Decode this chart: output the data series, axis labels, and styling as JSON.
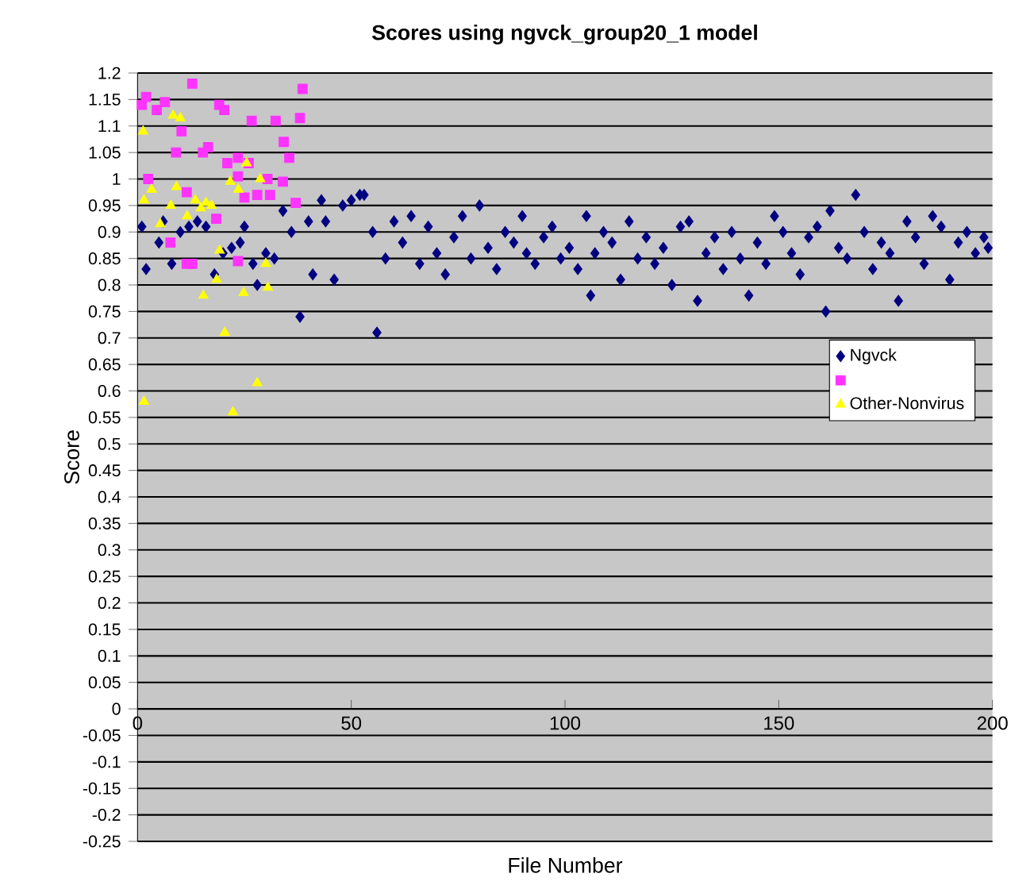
{
  "chart_data": {
    "type": "scatter",
    "title": "Scores using ngvck_group20_1 model",
    "xlabel": "File Number",
    "ylabel": "Score",
    "xlim": [
      0,
      200
    ],
    "xticks": [
      0,
      50,
      100,
      150,
      200
    ],
    "ylim": [
      -0.25,
      1.2
    ],
    "yticks": [
      -0.25,
      -0.2,
      -0.15,
      -0.1,
      -0.05,
      0,
      0.05,
      0.1,
      0.15,
      0.2,
      0.25,
      0.3,
      0.35,
      0.4,
      0.45,
      0.5,
      0.55,
      0.6,
      0.65,
      0.7,
      0.75,
      0.8,
      0.85,
      0.9,
      0.95,
      1,
      1.05,
      1.1,
      1.15,
      1.2
    ],
    "grid": "y",
    "legend": "right",
    "series": [
      {
        "name": "Ngvck",
        "color": "#000080",
        "marker": "diamond",
        "x": [
          1,
          2,
          5,
          6,
          8,
          10,
          12,
          14,
          16,
          18,
          20,
          22,
          24,
          25,
          27,
          28,
          30,
          32,
          34,
          36,
          38,
          40,
          41,
          43,
          44,
          46,
          48,
          50,
          52,
          53,
          55,
          56,
          58,
          60,
          62,
          64,
          66,
          68,
          70,
          72,
          74,
          76,
          78,
          80,
          82,
          84,
          86,
          88,
          90,
          91,
          93,
          95,
          97,
          99,
          101,
          103,
          105,
          106,
          107,
          109,
          111,
          113,
          115,
          117,
          119,
          121,
          123,
          125,
          127,
          129,
          131,
          133,
          135,
          137,
          139,
          141,
          143,
          145,
          147,
          149,
          151,
          153,
          155,
          157,
          159,
          161,
          162,
          164,
          166,
          168,
          170,
          172,
          174,
          176,
          178,
          180,
          182,
          184,
          186,
          188,
          190,
          192,
          194,
          196,
          198,
          199
        ],
        "values": [
          0.91,
          0.83,
          0.88,
          0.92,
          0.84,
          0.9,
          0.91,
          0.92,
          0.91,
          0.82,
          0.86,
          0.87,
          0.88,
          0.91,
          0.84,
          0.8,
          0.86,
          0.85,
          0.94,
          0.9,
          0.74,
          0.92,
          0.82,
          0.96,
          0.92,
          0.81,
          0.95,
          0.96,
          0.97,
          0.97,
          0.9,
          0.71,
          0.85,
          0.92,
          0.88,
          0.93,
          0.84,
          0.91,
          0.86,
          0.82,
          0.89,
          0.93,
          0.85,
          0.95,
          0.87,
          0.83,
          0.9,
          0.88,
          0.93,
          0.86,
          0.84,
          0.89,
          0.91,
          0.85,
          0.87,
          0.83,
          0.93,
          0.78,
          0.86,
          0.9,
          0.88,
          0.81,
          0.92,
          0.85,
          0.89,
          0.84,
          0.87,
          0.8,
          0.91,
          0.92,
          0.77,
          0.86,
          0.89,
          0.83,
          0.9,
          0.85,
          0.78,
          0.88,
          0.84,
          0.93,
          0.9,
          0.86,
          0.82,
          0.89,
          0.91,
          0.75,
          0.94,
          0.87,
          0.85,
          0.97,
          0.9,
          0.83,
          0.88,
          0.86,
          0.77,
          0.92,
          0.89,
          0.84,
          0.93,
          0.91,
          0.81,
          0.88,
          0.9,
          0.86,
          0.89,
          0.87
        ]
      },
      {
        "color": "#ff33ff",
        "marker": "square",
        "x": [
          1,
          2,
          4.5,
          6.4,
          12.8,
          9,
          10.3,
          15.3,
          16.5,
          19.1,
          20.3,
          21,
          26,
          26.7,
          32.3,
          34.2,
          35.5,
          38,
          38.6,
          2.5,
          30.4,
          34,
          31,
          25,
          28,
          37,
          11.5,
          18.4,
          7.7,
          11.5,
          12.8,
          23.5,
          23.5,
          23.5
        ],
        "values": [
          1.14,
          1.155,
          1.13,
          1.145,
          1.18,
          1.05,
          1.09,
          1.05,
          1.06,
          1.14,
          1.13,
          1.03,
          1.03,
          1.11,
          1.11,
          1.07,
          1.04,
          1.115,
          1.17,
          1.0,
          1.0,
          0.995,
          0.97,
          0.965,
          0.97,
          0.955,
          0.975,
          0.925,
          0.88,
          0.84,
          0.84,
          0.845,
          1.04,
          1.005
        ]
      },
      {
        "name": "Other-Nonvirus",
        "color": "#ffff00",
        "marker": "triangle",
        "x": [
          1.3,
          1.5,
          8.3,
          10,
          1.5,
          3.3,
          9.1,
          5.3,
          7.8,
          11.6,
          13.5,
          14.8,
          17.3,
          16,
          21.7,
          23.6,
          25.5,
          28.7,
          19.2,
          18.5,
          15.4,
          24.8,
          30,
          30.5,
          20.4,
          28,
          22.3
        ],
        "values": [
          1.09,
          0.58,
          1.12,
          1.115,
          0.96,
          0.98,
          0.985,
          0.915,
          0.95,
          0.93,
          0.96,
          0.945,
          0.95,
          0.955,
          0.995,
          0.98,
          1.03,
          1.0,
          0.865,
          0.81,
          0.78,
          0.785,
          0.84,
          0.795,
          0.71,
          0.615,
          0.56
        ]
      }
    ]
  }
}
